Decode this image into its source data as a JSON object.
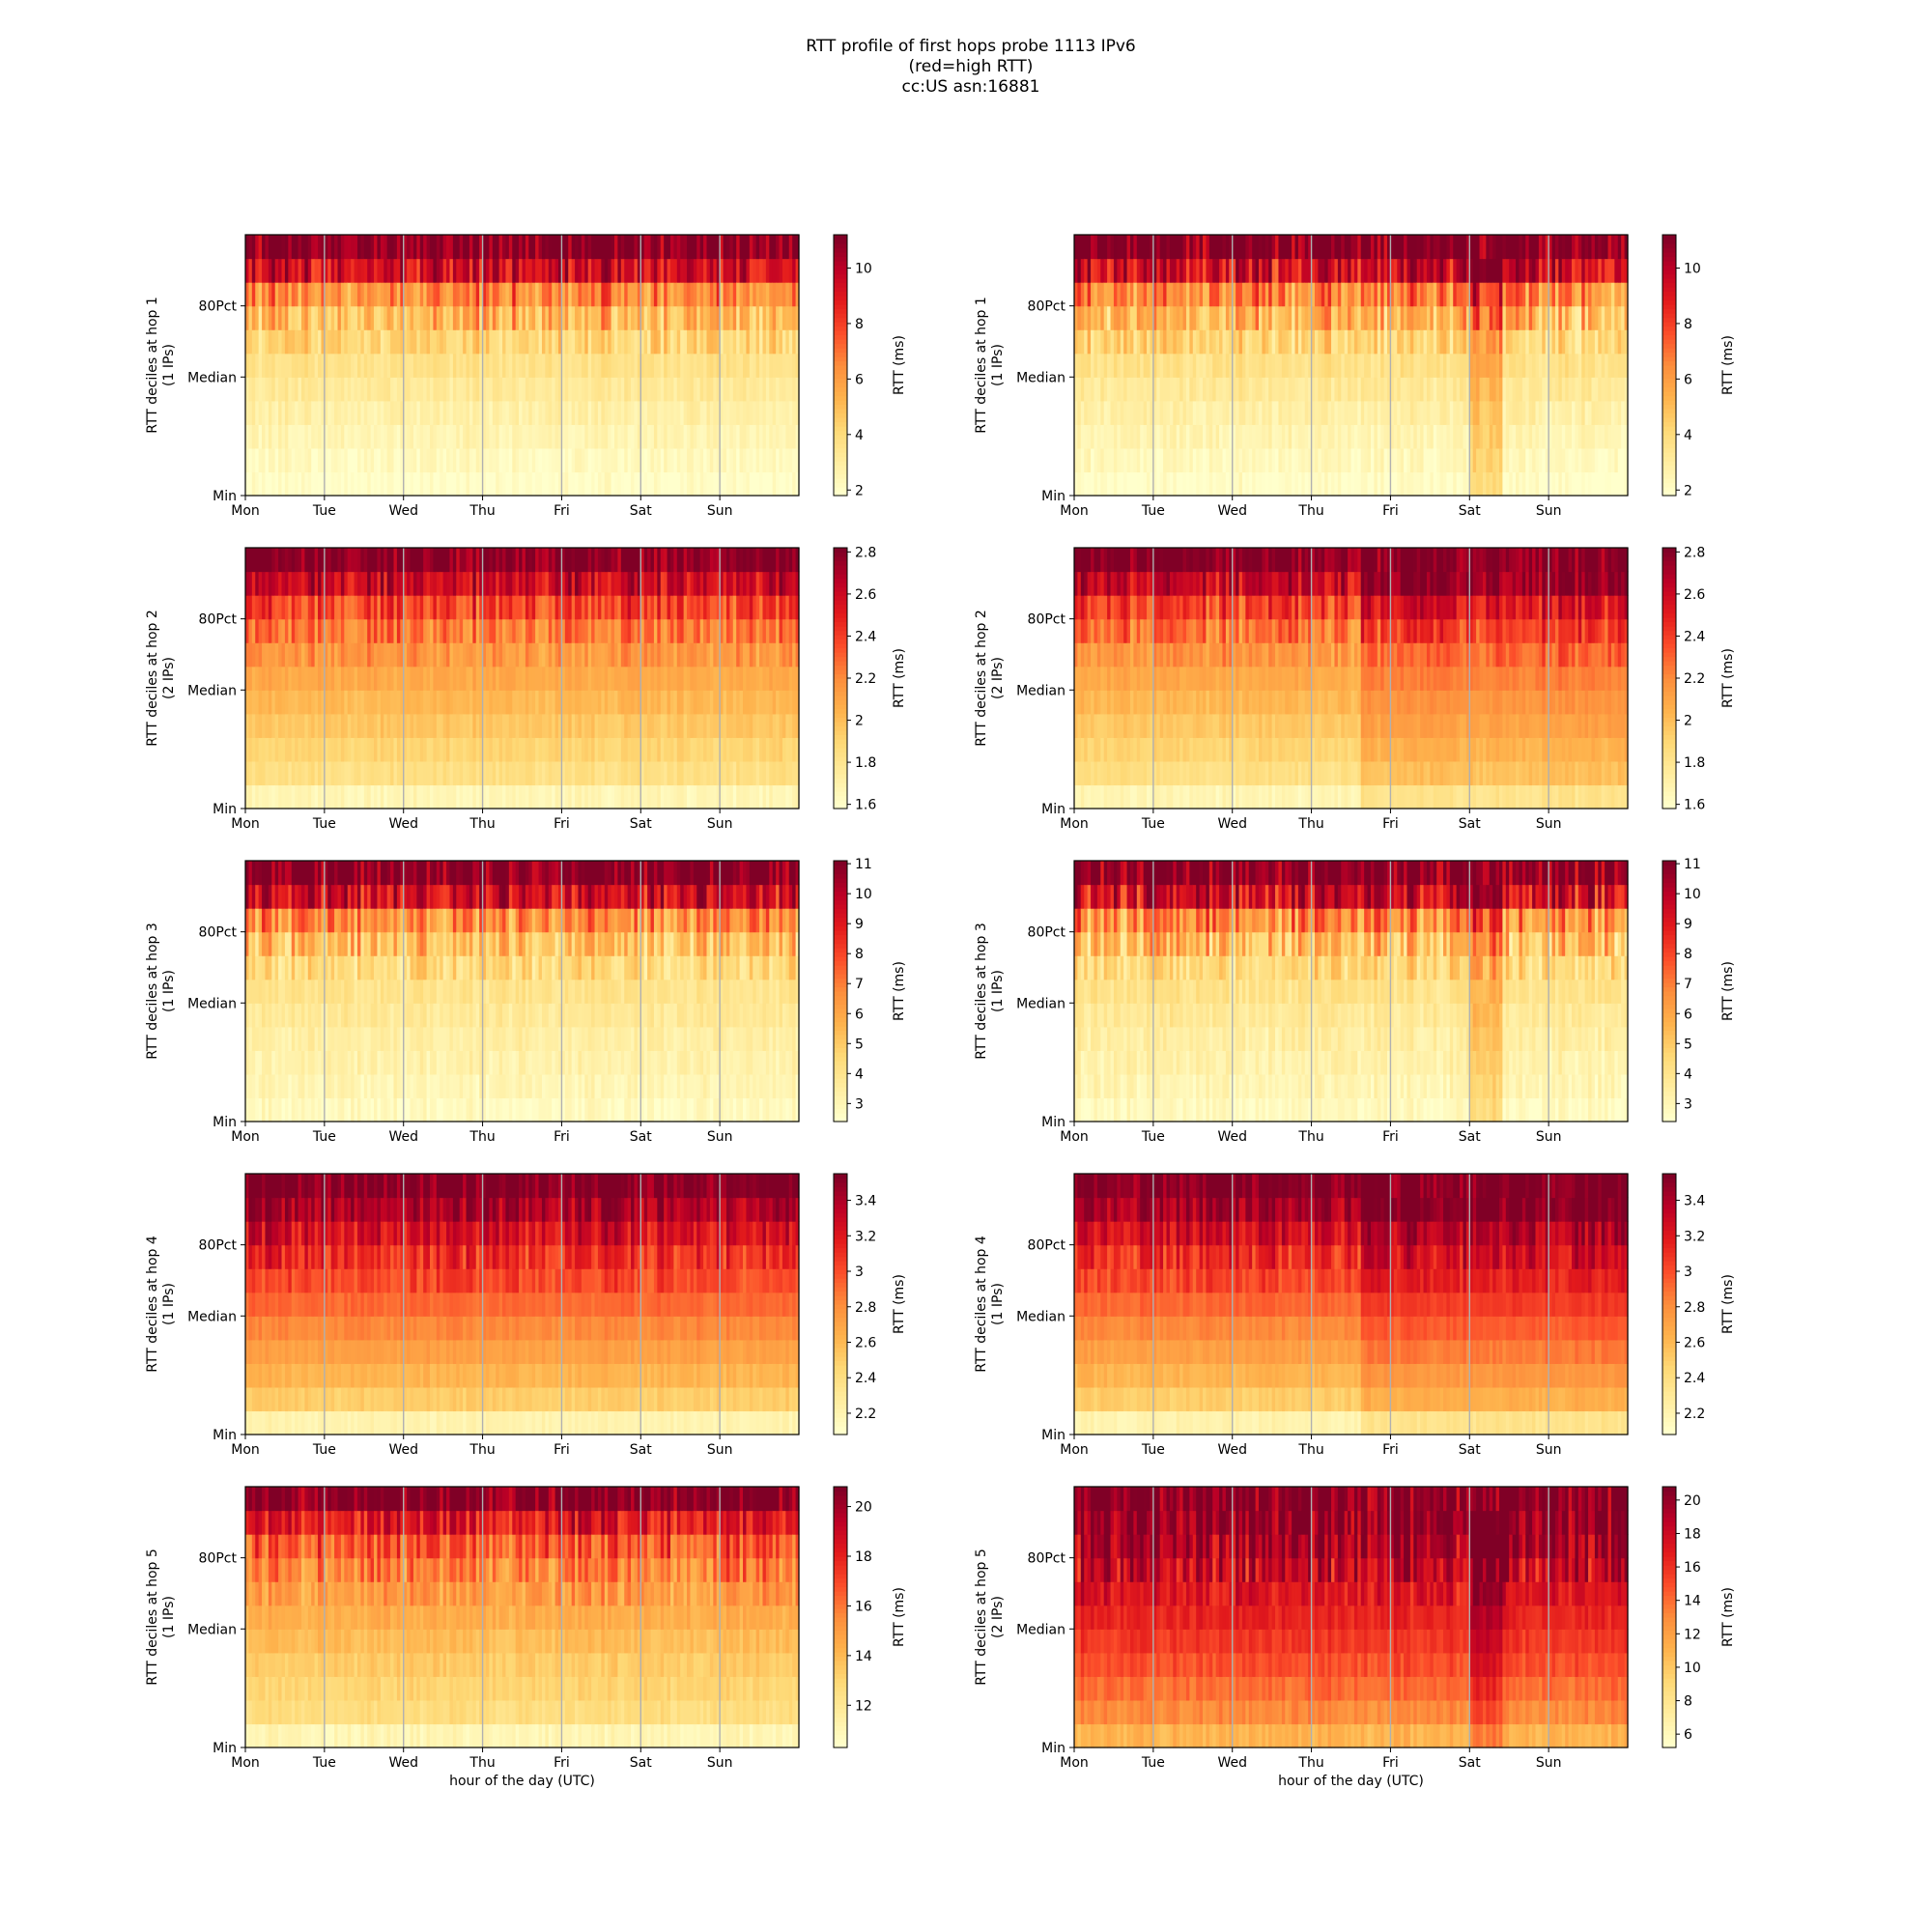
{
  "figure": {
    "title_lines": [
      "RTT profile of first hops probe 1113 IPv6",
      "(red=high RTT)",
      "cc:US asn:16881"
    ],
    "colors": {
      "cmap": [
        "#ffffcc",
        "#ffeda0",
        "#fed976",
        "#feb24c",
        "#fd8d3c",
        "#fc4e2a",
        "#e31a1c",
        "#bd0026",
        "#800026"
      ],
      "grid": "#b0b0b0"
    }
  },
  "chart_data": [
    {
      "type": "heatmap",
      "panel": "hop1-left",
      "ylabel": "RTT deciles at hop 1",
      "ylabel2": "(1 IPs)",
      "xticks": [
        "Mon",
        "Tue",
        "Wed",
        "Thu",
        "Fri",
        "Sat",
        "Sun"
      ],
      "yticks": [
        "Min",
        "Median",
        "80Pct"
      ],
      "colorbar_label": "RTT (ms)",
      "colorbar_ticks": [
        2,
        4,
        6,
        8,
        10
      ],
      "crange": [
        1.8,
        11.2
      ],
      "decile_profile": [
        1.9,
        2.2,
        2.5,
        2.8,
        3.2,
        3.6,
        4.2,
        5.2,
        6.5,
        9.5,
        11.2
      ],
      "jitter": 0.45,
      "regime": []
    },
    {
      "type": "heatmap",
      "panel": "hop1-right",
      "ylabel": "RTT deciles at hop 1",
      "ylabel2": "(1 IPs)",
      "xticks": [
        "Mon",
        "Tue",
        "Wed",
        "Thu",
        "Fri",
        "Sat",
        "Sun"
      ],
      "yticks": [
        "Min",
        "Median",
        "80Pct"
      ],
      "colorbar_label": "RTT (ms)",
      "colorbar_ticks": [
        2,
        4,
        6,
        8,
        10
      ],
      "crange": [
        1.8,
        11.2
      ],
      "decile_profile": [
        1.9,
        2.2,
        2.5,
        2.8,
        3.2,
        3.6,
        4.2,
        5.2,
        6.5,
        9.5,
        11.2
      ],
      "jitter": 0.5,
      "regime": [
        {
          "from": 5.0,
          "to": 5.4,
          "shift": 0.22
        }
      ]
    },
    {
      "type": "heatmap",
      "panel": "hop2-left",
      "ylabel": "RTT deciles at hop 2",
      "ylabel2": "(2 IPs)",
      "xticks": [
        "Mon",
        "Tue",
        "Wed",
        "Thu",
        "Fri",
        "Sat",
        "Sun"
      ],
      "yticks": [
        "Min",
        "Median",
        "80Pct"
      ],
      "colorbar_label": "RTT (ms)",
      "colorbar_ticks": [
        1.6,
        1.8,
        2.0,
        2.2,
        2.4,
        2.6,
        2.8
      ],
      "crange": [
        1.58,
        2.82
      ],
      "decile_profile": [
        1.66,
        1.84,
        1.9,
        1.96,
        2.02,
        2.08,
        2.16,
        2.26,
        2.4,
        2.62,
        2.82
      ],
      "jitter": 0.35,
      "regime": []
    },
    {
      "type": "heatmap",
      "panel": "hop2-right",
      "ylabel": "RTT deciles at hop 2",
      "ylabel2": "(2 IPs)",
      "xticks": [
        "Mon",
        "Tue",
        "Wed",
        "Thu",
        "Fri",
        "Sat",
        "Sun"
      ],
      "yticks": [
        "Min",
        "Median",
        "80Pct"
      ],
      "colorbar_label": "RTT (ms)",
      "colorbar_ticks": [
        1.6,
        1.8,
        2.0,
        2.2,
        2.4,
        2.6,
        2.8
      ],
      "crange": [
        1.58,
        2.82
      ],
      "decile_profile": [
        1.66,
        1.84,
        1.9,
        1.96,
        2.02,
        2.08,
        2.16,
        2.26,
        2.4,
        2.62,
        2.82
      ],
      "jitter": 0.35,
      "regime": [
        {
          "from": 3.6,
          "to": 7.0,
          "shift": 0.12
        }
      ]
    },
    {
      "type": "heatmap",
      "panel": "hop3-left",
      "ylabel": "RTT deciles at hop 3",
      "ylabel2": "(1 IPs)",
      "xticks": [
        "Mon",
        "Tue",
        "Wed",
        "Thu",
        "Fri",
        "Sat",
        "Sun"
      ],
      "yticks": [
        "Min",
        "Median",
        "80Pct"
      ],
      "colorbar_label": "RTT (ms)",
      "colorbar_ticks": [
        3,
        4,
        5,
        6,
        7,
        8,
        9,
        10,
        11
      ],
      "crange": [
        2.4,
        11.1
      ],
      "decile_profile": [
        2.7,
        3.0,
        3.2,
        3.4,
        3.7,
        4.0,
        4.4,
        5.3,
        6.6,
        9.5,
        11.1
      ],
      "jitter": 0.45,
      "regime": []
    },
    {
      "type": "heatmap",
      "panel": "hop3-right",
      "ylabel": "RTT deciles at hop 3",
      "ylabel2": "(1 IPs)",
      "xticks": [
        "Mon",
        "Tue",
        "Wed",
        "Thu",
        "Fri",
        "Sat",
        "Sun"
      ],
      "yticks": [
        "Min",
        "Median",
        "80Pct"
      ],
      "colorbar_label": "RTT (ms)",
      "colorbar_ticks": [
        3,
        4,
        5,
        6,
        7,
        8,
        9,
        10,
        11
      ],
      "crange": [
        2.4,
        11.1
      ],
      "decile_profile": [
        2.7,
        3.0,
        3.2,
        3.4,
        3.7,
        4.0,
        4.4,
        5.3,
        6.6,
        9.5,
        11.1
      ],
      "jitter": 0.5,
      "regime": [
        {
          "from": 5.0,
          "to": 5.4,
          "shift": 0.2
        }
      ]
    },
    {
      "type": "heatmap",
      "panel": "hop4-left",
      "ylabel": "RTT deciles at hop 4",
      "ylabel2": "(1 IPs)",
      "xticks": [
        "Mon",
        "Tue",
        "Wed",
        "Thu",
        "Fri",
        "Sat",
        "Sun"
      ],
      "yticks": [
        "Min",
        "Median",
        "80Pct"
      ],
      "colorbar_label": "RTT (ms)",
      "colorbar_ticks": [
        2.2,
        2.4,
        2.6,
        2.8,
        3.0,
        3.2,
        3.4
      ],
      "crange": [
        2.08,
        3.55
      ],
      "decile_profile": [
        2.2,
        2.5,
        2.62,
        2.72,
        2.82,
        2.92,
        3.02,
        3.12,
        3.25,
        3.42,
        3.55
      ],
      "jitter": 0.3,
      "regime": []
    },
    {
      "type": "heatmap",
      "panel": "hop4-right",
      "ylabel": "RTT deciles at hop 4",
      "ylabel2": "(1 IPs)",
      "xticks": [
        "Mon",
        "Tue",
        "Wed",
        "Thu",
        "Fri",
        "Sat",
        "Sun"
      ],
      "yticks": [
        "Min",
        "Median",
        "80Pct"
      ],
      "colorbar_label": "RTT (ms)",
      "colorbar_ticks": [
        2.2,
        2.4,
        2.6,
        2.8,
        3.0,
        3.2,
        3.4
      ],
      "crange": [
        2.08,
        3.55
      ],
      "decile_profile": [
        2.2,
        2.5,
        2.62,
        2.72,
        2.82,
        2.92,
        3.02,
        3.12,
        3.25,
        3.42,
        3.55
      ],
      "jitter": 0.3,
      "regime": [
        {
          "from": 3.6,
          "to": 7.0,
          "shift": 0.1
        }
      ]
    },
    {
      "type": "heatmap",
      "panel": "hop5-left",
      "ylabel": "RTT deciles at hop 5",
      "ylabel2": "(1 IPs)",
      "xticks": [
        "Mon",
        "Tue",
        "Wed",
        "Thu",
        "Fri",
        "Sat",
        "Sun"
      ],
      "yticks": [
        "Min",
        "Median",
        "80Pct"
      ],
      "colorbar_label": "RTT (ms)",
      "colorbar_ticks": [
        12,
        14,
        16,
        18,
        20
      ],
      "crange": [
        10.3,
        20.8
      ],
      "decile_profile": [
        11.0,
        12.6,
        13.0,
        13.4,
        13.9,
        14.4,
        15.0,
        15.7,
        16.6,
        18.3,
        20.8
      ],
      "jitter": 0.4,
      "regime": []
    },
    {
      "type": "heatmap",
      "panel": "hop5-right",
      "ylabel": "RTT deciles at hop 5",
      "ylabel2": "(2 IPs)",
      "xticks": [
        "Mon",
        "Tue",
        "Wed",
        "Thu",
        "Fri",
        "Sat",
        "Sun"
      ],
      "yticks": [
        "Min",
        "Median",
        "80Pct"
      ],
      "colorbar_label": "RTT (ms)",
      "colorbar_ticks": [
        6,
        8,
        10,
        12,
        14,
        16,
        18,
        20
      ],
      "crange": [
        5.2,
        20.8
      ],
      "decile_profile": [
        11.0,
        13.0,
        14.0,
        15.0,
        15.8,
        16.6,
        17.4,
        18.3,
        19.5,
        20.5,
        20.8
      ],
      "jitter": 0.45,
      "regime": [
        {
          "from": 5.0,
          "to": 5.4,
          "shift": 0.15
        }
      ]
    }
  ],
  "bottom_xlabel": "hour of the day (UTC)"
}
